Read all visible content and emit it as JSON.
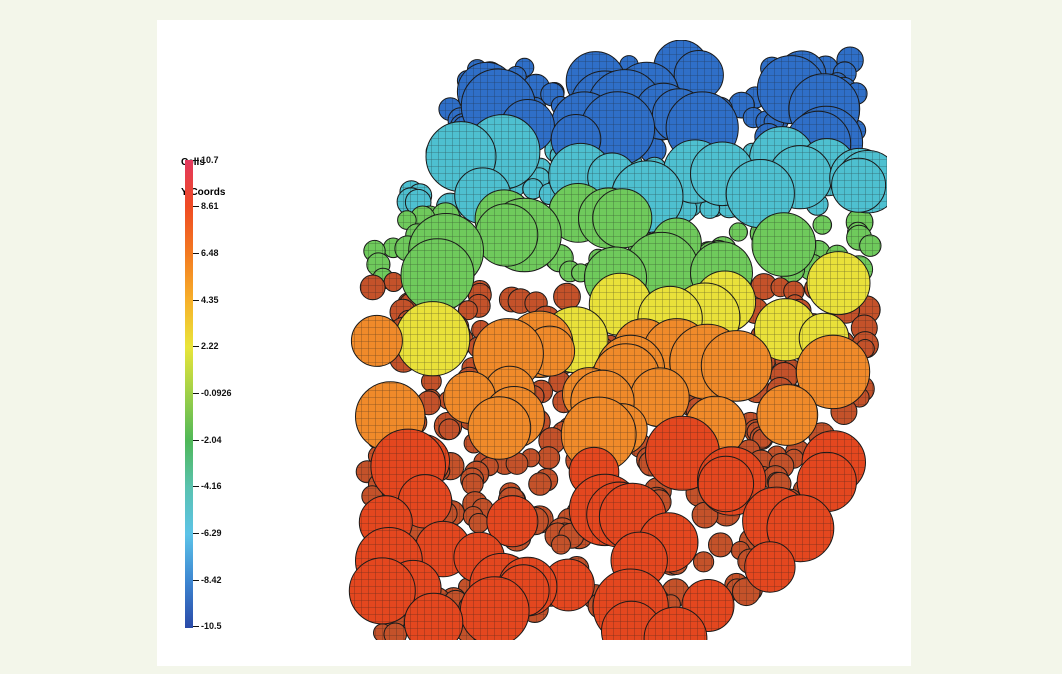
{
  "legend": {
    "title_line1": "Cells",
    "title_line2": "Y-Coords",
    "ticks": [
      "10.7",
      "8.61",
      "6.48",
      "4.35",
      "2.22",
      "-0.0926",
      "-2.04",
      "-4.16",
      "-6.29",
      "-8.42",
      "-10.5"
    ],
    "gradient_colors": [
      "#e3385f",
      "#ef4b23",
      "#f37a21",
      "#f7b02a",
      "#e9e53a",
      "#9ed048",
      "#4fb858",
      "#5ac2b0",
      "#5cc3e8",
      "#3d86d1",
      "#2a4aa8"
    ]
  },
  "scene": {
    "subject": "cell-aggregate-mesh",
    "colors": {
      "top": "#2f6fc8",
      "upper": "#4ec0d0",
      "middle": "#6fca5c",
      "lower-middle": "#e9e13a",
      "lower": "#f08a2a",
      "bottom": "#e4471f",
      "mesh": "#1a1a1a"
    }
  }
}
